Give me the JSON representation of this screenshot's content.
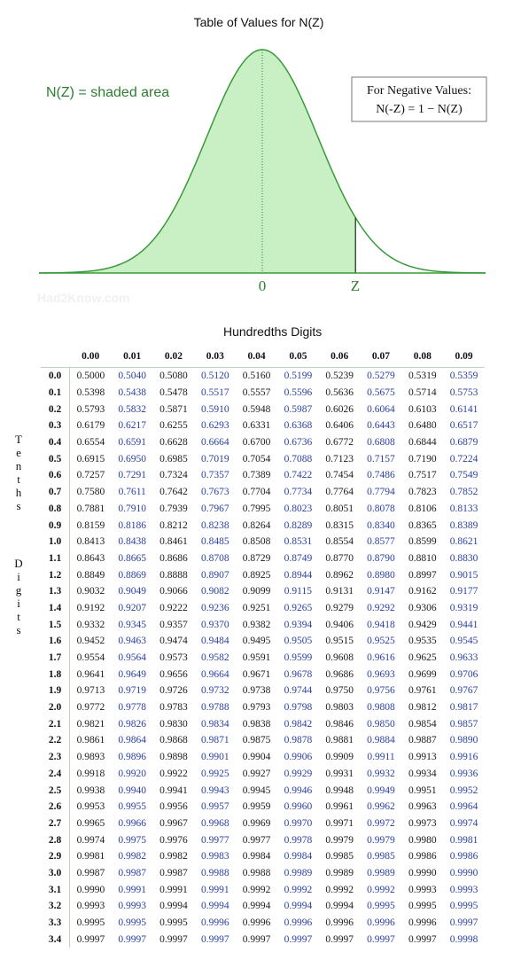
{
  "header": {
    "title": "Table of Values for N(Z)",
    "shaded_label": "N(Z) = shaded area",
    "neg_box_line1": "For Negative Values:",
    "neg_box_line2": "N(-Z) = 1 − N(Z)",
    "axis_zero": "0",
    "axis_z": "Z",
    "watermark": "Had2Know.com"
  },
  "colors": {
    "curve": "#3a9a3a",
    "shade": "#c8f0c4",
    "text_green": "#2e7d32",
    "odd_col": "#2a3fa0"
  },
  "table": {
    "hundredths_title": "Hundredths Digits",
    "tenths_label": [
      "T",
      "e",
      "n",
      "t",
      "h",
      "s"
    ],
    "digits_label": [
      "D",
      "i",
      "g",
      "i",
      "t",
      "s"
    ],
    "columns": [
      "0.00",
      "0.01",
      "0.02",
      "0.03",
      "0.04",
      "0.05",
      "0.06",
      "0.07",
      "0.08",
      "0.09"
    ],
    "rows": [
      {
        "z": "0.0",
        "v": [
          "0.5000",
          "0.5040",
          "0.5080",
          "0.5120",
          "0.5160",
          "0.5199",
          "0.5239",
          "0.5279",
          "0.5319",
          "0.5359"
        ]
      },
      {
        "z": "0.1",
        "v": [
          "0.5398",
          "0.5438",
          "0.5478",
          "0.5517",
          "0.5557",
          "0.5596",
          "0.5636",
          "0.5675",
          "0.5714",
          "0.5753"
        ]
      },
      {
        "z": "0.2",
        "v": [
          "0.5793",
          "0.5832",
          "0.5871",
          "0.5910",
          "0.5948",
          "0.5987",
          "0.6026",
          "0.6064",
          "0.6103",
          "0.6141"
        ]
      },
      {
        "z": "0.3",
        "v": [
          "0.6179",
          "0.6217",
          "0.6255",
          "0.6293",
          "0.6331",
          "0.6368",
          "0.6406",
          "0.6443",
          "0.6480",
          "0.6517"
        ]
      },
      {
        "z": "0.4",
        "v": [
          "0.6554",
          "0.6591",
          "0.6628",
          "0.6664",
          "0.6700",
          "0.6736",
          "0.6772",
          "0.6808",
          "0.6844",
          "0.6879"
        ]
      },
      {
        "z": "0.5",
        "v": [
          "0.6915",
          "0.6950",
          "0.6985",
          "0.7019",
          "0.7054",
          "0.7088",
          "0.7123",
          "0.7157",
          "0.7190",
          "0.7224"
        ]
      },
      {
        "z": "0.6",
        "v": [
          "0.7257",
          "0.7291",
          "0.7324",
          "0.7357",
          "0.7389",
          "0.7422",
          "0.7454",
          "0.7486",
          "0.7517",
          "0.7549"
        ]
      },
      {
        "z": "0.7",
        "v": [
          "0.7580",
          "0.7611",
          "0.7642",
          "0.7673",
          "0.7704",
          "0.7734",
          "0.7764",
          "0.7794",
          "0.7823",
          "0.7852"
        ]
      },
      {
        "z": "0.8",
        "v": [
          "0.7881",
          "0.7910",
          "0.7939",
          "0.7967",
          "0.7995",
          "0.8023",
          "0.8051",
          "0.8078",
          "0.8106",
          "0.8133"
        ]
      },
      {
        "z": "0.9",
        "v": [
          "0.8159",
          "0.8186",
          "0.8212",
          "0.8238",
          "0.8264",
          "0.8289",
          "0.8315",
          "0.8340",
          "0.8365",
          "0.8389"
        ]
      },
      {
        "z": "1.0",
        "v": [
          "0.8413",
          "0.8438",
          "0.8461",
          "0.8485",
          "0.8508",
          "0.8531",
          "0.8554",
          "0.8577",
          "0.8599",
          "0.8621"
        ]
      },
      {
        "z": "1.1",
        "v": [
          "0.8643",
          "0.8665",
          "0.8686",
          "0.8708",
          "0.8729",
          "0.8749",
          "0.8770",
          "0.8790",
          "0.8810",
          "0.8830"
        ]
      },
      {
        "z": "1.2",
        "v": [
          "0.8849",
          "0.8869",
          "0.8888",
          "0.8907",
          "0.8925",
          "0.8944",
          "0.8962",
          "0.8980",
          "0.8997",
          "0.9015"
        ]
      },
      {
        "z": "1.3",
        "v": [
          "0.9032",
          "0.9049",
          "0.9066",
          "0.9082",
          "0.9099",
          "0.9115",
          "0.9131",
          "0.9147",
          "0.9162",
          "0.9177"
        ]
      },
      {
        "z": "1.4",
        "v": [
          "0.9192",
          "0.9207",
          "0.9222",
          "0.9236",
          "0.9251",
          "0.9265",
          "0.9279",
          "0.9292",
          "0.9306",
          "0.9319"
        ]
      },
      {
        "z": "1.5",
        "v": [
          "0.9332",
          "0.9345",
          "0.9357",
          "0.9370",
          "0.9382",
          "0.9394",
          "0.9406",
          "0.9418",
          "0.9429",
          "0.9441"
        ]
      },
      {
        "z": "1.6",
        "v": [
          "0.9452",
          "0.9463",
          "0.9474",
          "0.9484",
          "0.9495",
          "0.9505",
          "0.9515",
          "0.9525",
          "0.9535",
          "0.9545"
        ]
      },
      {
        "z": "1.7",
        "v": [
          "0.9554",
          "0.9564",
          "0.9573",
          "0.9582",
          "0.9591",
          "0.9599",
          "0.9608",
          "0.9616",
          "0.9625",
          "0.9633"
        ]
      },
      {
        "z": "1.8",
        "v": [
          "0.9641",
          "0.9649",
          "0.9656",
          "0.9664",
          "0.9671",
          "0.9678",
          "0.9686",
          "0.9693",
          "0.9699",
          "0.9706"
        ]
      },
      {
        "z": "1.9",
        "v": [
          "0.9713",
          "0.9719",
          "0.9726",
          "0.9732",
          "0.9738",
          "0.9744",
          "0.9750",
          "0.9756",
          "0.9761",
          "0.9767"
        ]
      },
      {
        "z": "2.0",
        "v": [
          "0.9772",
          "0.9778",
          "0.9783",
          "0.9788",
          "0.9793",
          "0.9798",
          "0.9803",
          "0.9808",
          "0.9812",
          "0.9817"
        ]
      },
      {
        "z": "2.1",
        "v": [
          "0.9821",
          "0.9826",
          "0.9830",
          "0.9834",
          "0.9838",
          "0.9842",
          "0.9846",
          "0.9850",
          "0.9854",
          "0.9857"
        ]
      },
      {
        "z": "2.2",
        "v": [
          "0.9861",
          "0.9864",
          "0.9868",
          "0.9871",
          "0.9875",
          "0.9878",
          "0.9881",
          "0.9884",
          "0.9887",
          "0.9890"
        ]
      },
      {
        "z": "2.3",
        "v": [
          "0.9893",
          "0.9896",
          "0.9898",
          "0.9901",
          "0.9904",
          "0.9906",
          "0.9909",
          "0.9911",
          "0.9913",
          "0.9916"
        ]
      },
      {
        "z": "2.4",
        "v": [
          "0.9918",
          "0.9920",
          "0.9922",
          "0.9925",
          "0.9927",
          "0.9929",
          "0.9931",
          "0.9932",
          "0.9934",
          "0.9936"
        ]
      },
      {
        "z": "2.5",
        "v": [
          "0.9938",
          "0.9940",
          "0.9941",
          "0.9943",
          "0.9945",
          "0.9946",
          "0.9948",
          "0.9949",
          "0.9951",
          "0.9952"
        ]
      },
      {
        "z": "2.6",
        "v": [
          "0.9953",
          "0.9955",
          "0.9956",
          "0.9957",
          "0.9959",
          "0.9960",
          "0.9961",
          "0.9962",
          "0.9963",
          "0.9964"
        ]
      },
      {
        "z": "2.7",
        "v": [
          "0.9965",
          "0.9966",
          "0.9967",
          "0.9968",
          "0.9969",
          "0.9970",
          "0.9971",
          "0.9972",
          "0.9973",
          "0.9974"
        ]
      },
      {
        "z": "2.8",
        "v": [
          "0.9974",
          "0.9975",
          "0.9976",
          "0.9977",
          "0.9977",
          "0.9978",
          "0.9979",
          "0.9979",
          "0.9980",
          "0.9981"
        ]
      },
      {
        "z": "2.9",
        "v": [
          "0.9981",
          "0.9982",
          "0.9982",
          "0.9983",
          "0.9984",
          "0.9984",
          "0.9985",
          "0.9985",
          "0.9986",
          "0.9986"
        ]
      },
      {
        "z": "3.0",
        "v": [
          "0.9987",
          "0.9987",
          "0.9987",
          "0.9988",
          "0.9988",
          "0.9989",
          "0.9989",
          "0.9989",
          "0.9990",
          "0.9990"
        ]
      },
      {
        "z": "3.1",
        "v": [
          "0.9990",
          "0.9991",
          "0.9991",
          "0.9991",
          "0.9992",
          "0.9992",
          "0.9992",
          "0.9992",
          "0.9993",
          "0.9993"
        ]
      },
      {
        "z": "3.2",
        "v": [
          "0.9993",
          "0.9993",
          "0.9994",
          "0.9994",
          "0.9994",
          "0.9994",
          "0.9994",
          "0.9995",
          "0.9995",
          "0.9995"
        ]
      },
      {
        "z": "3.3",
        "v": [
          "0.9995",
          "0.9995",
          "0.9995",
          "0.9996",
          "0.9996",
          "0.9996",
          "0.9996",
          "0.9996",
          "0.9996",
          "0.9997"
        ]
      },
      {
        "z": "3.4",
        "v": [
          "0.9997",
          "0.9997",
          "0.9997",
          "0.9997",
          "0.9997",
          "0.9997",
          "0.9997",
          "0.9997",
          "0.9997",
          "0.9998"
        ]
      }
    ]
  }
}
